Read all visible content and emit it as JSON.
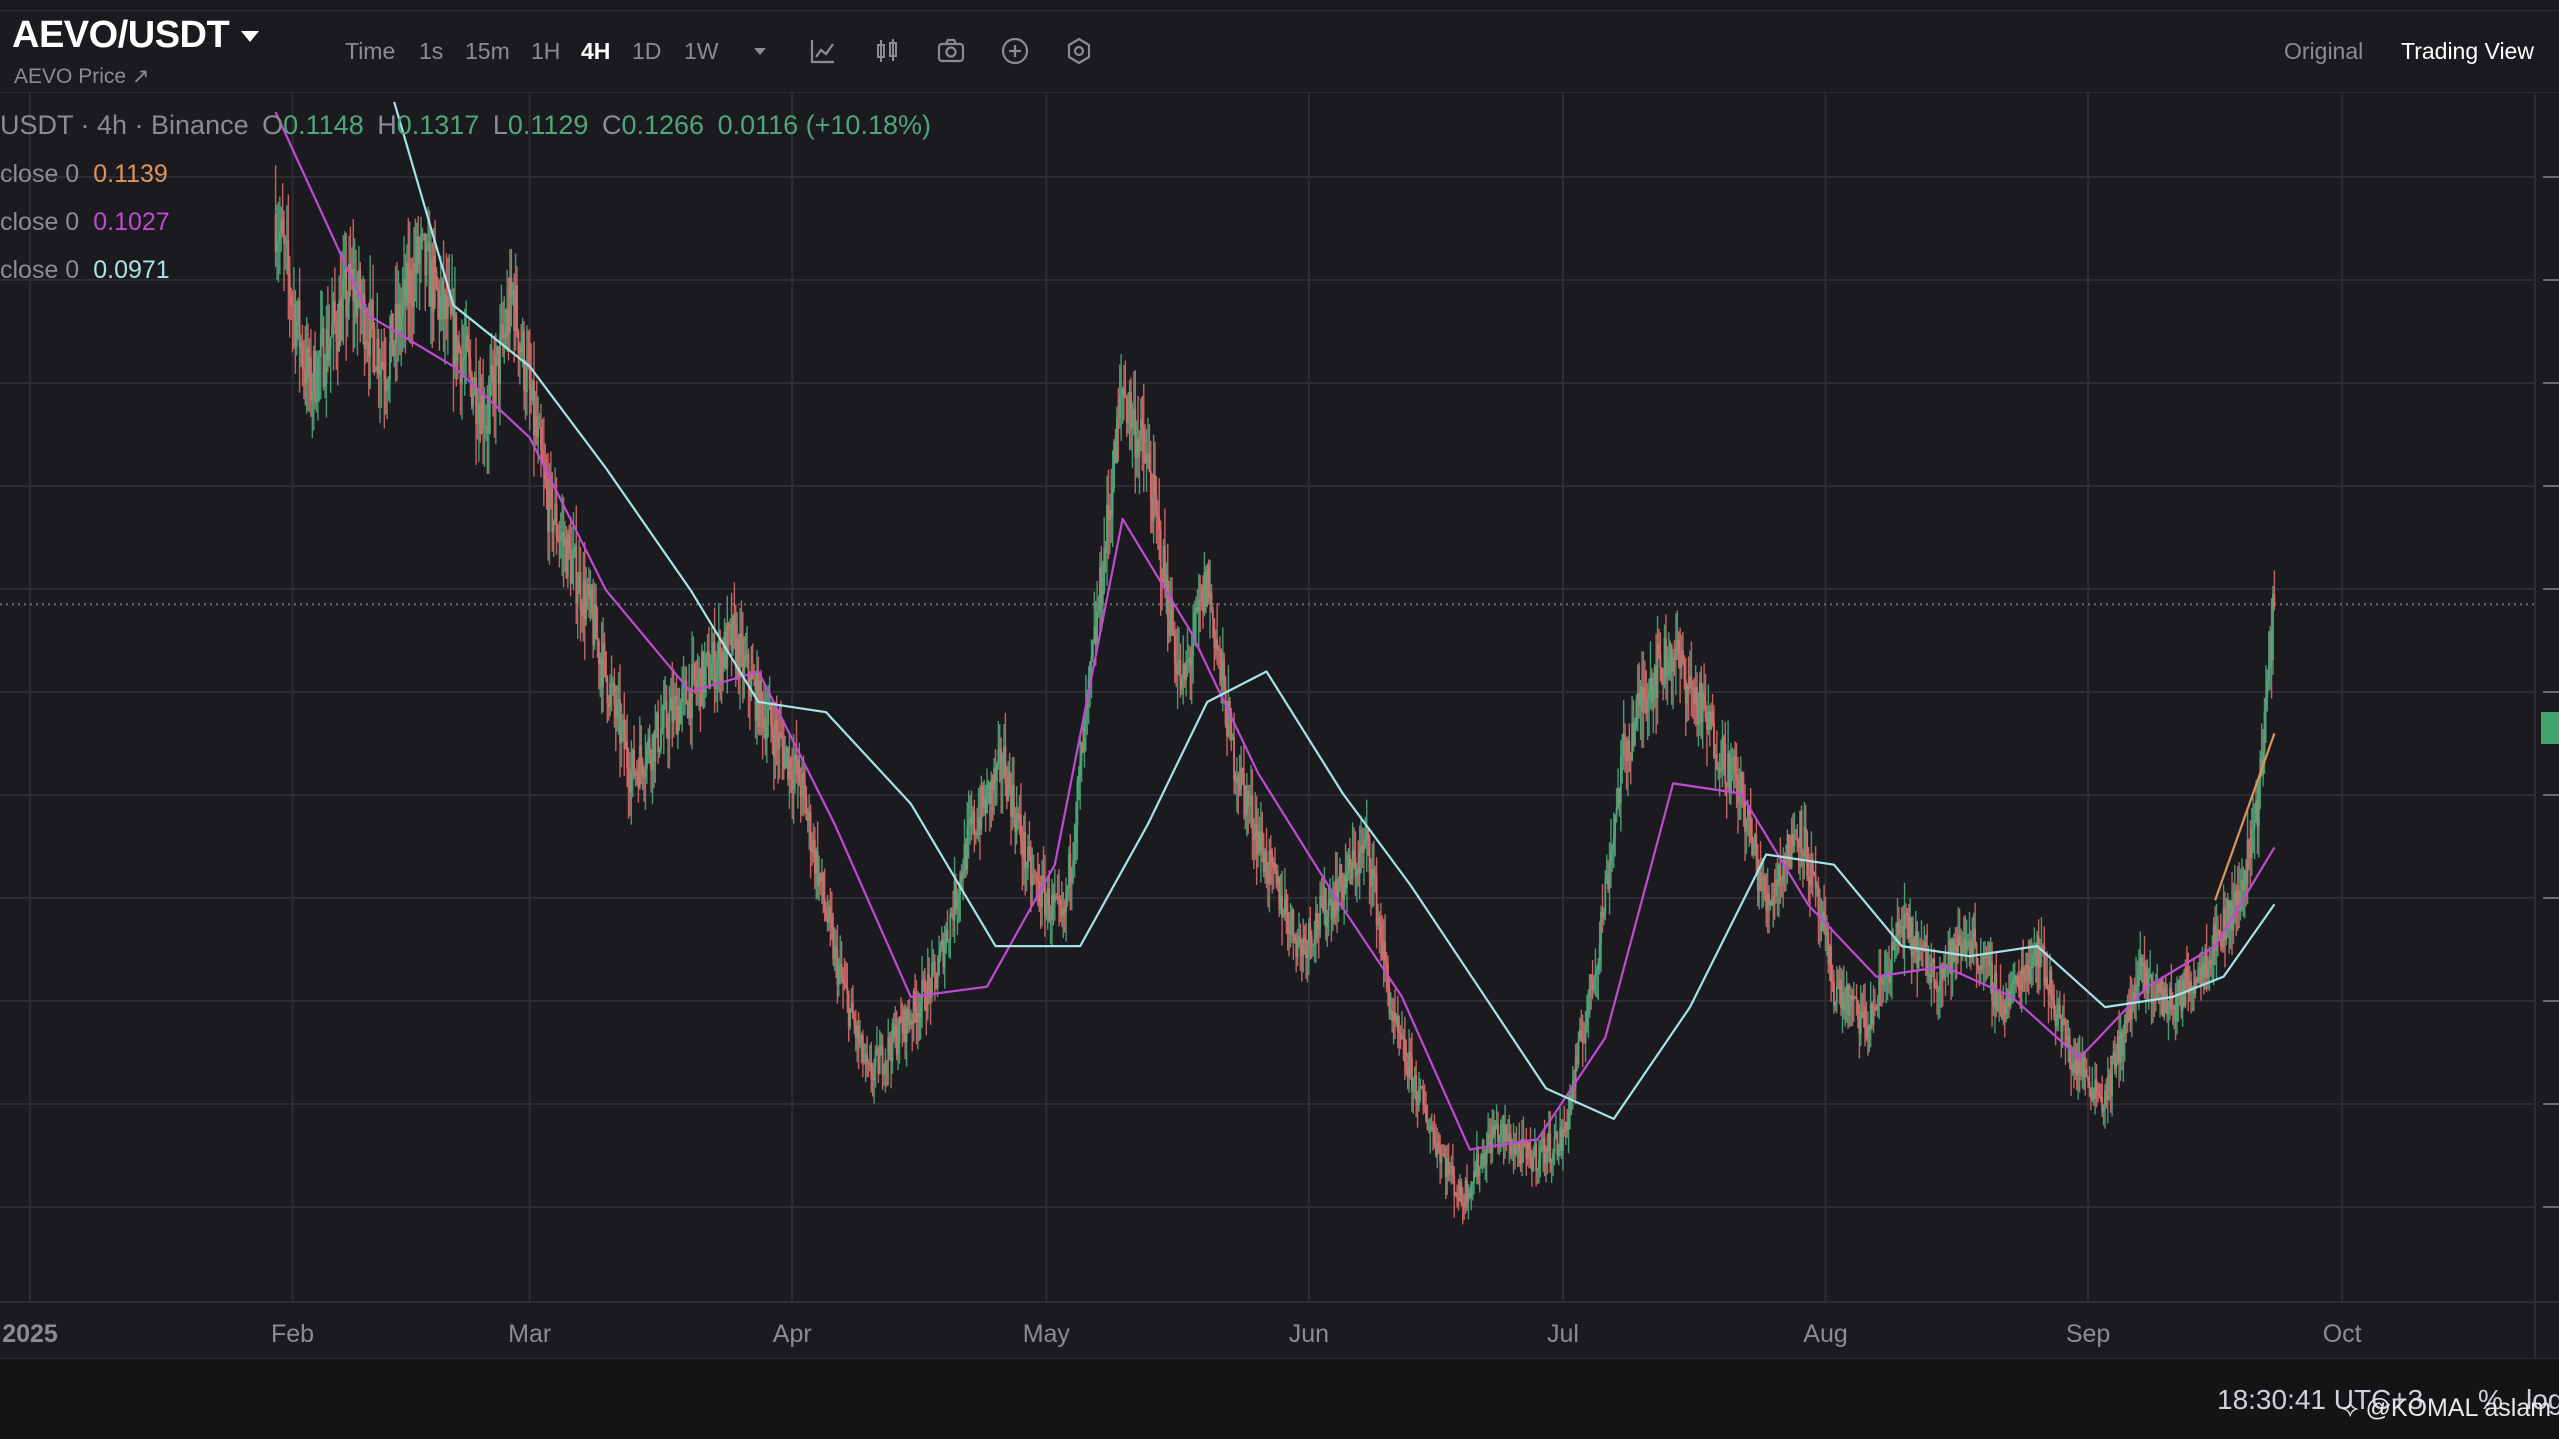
{
  "header": {
    "symbol": "AEVO/USDT",
    "subtitle": "AEVO Price ↗",
    "timeframes": [
      "Time",
      "1s",
      "15m",
      "1H",
      "4H",
      "1D",
      "1W"
    ],
    "active_timeframe": "4H",
    "views": [
      "Original",
      "Trading View"
    ],
    "active_view": "Trading View"
  },
  "legend": {
    "title": "USDT · 4h · Binance",
    "o_label": "O",
    "o": "0.1148",
    "h_label": "H",
    "h": "0.1317",
    "l_label": "L",
    "l": "0.1129",
    "c_label": "C",
    "c": "0.1266",
    "change": "0.0116 (+10.18%)"
  },
  "ma": [
    {
      "label": "close 0",
      "value": "0.1139",
      "color": "#e0955a"
    },
    {
      "label": "close 0",
      "value": "0.1027",
      "color": "#c14ad3"
    },
    {
      "label": "close 0",
      "value": "0.0971",
      "color": "#a6e3e6"
    }
  ],
  "footer": {
    "clock": "18:30:41 UTC+3",
    "percent": "%",
    "log": "log",
    "watermark": "@KOMAL aslam"
  },
  "colors": {
    "up": "#4fa67a",
    "down": "#d76b6b",
    "grid": "#2c2d33",
    "background": "#1b1b1f"
  },
  "chart_data": {
    "type": "line",
    "subtype": "candlestick",
    "x_tick_labels": [
      "2025",
      "Feb",
      "Mar",
      "Apr",
      "May",
      "Jun",
      "Jul",
      "Aug",
      "Sep",
      "Oct"
    ],
    "x_ticks": [
      "2025-01-01",
      "2025-02-01",
      "2025-03-01",
      "2025-04-01",
      "2025-05-01",
      "2025-06-01",
      "2025-07-01",
      "2025-08-01",
      "2025-09-01",
      "2025-10-01"
    ],
    "xlim": [
      "2025-01-01",
      "2025-10-22"
    ],
    "ylim": [
      0.058,
      0.176
    ],
    "current_price": 0.1266,
    "series": [
      {
        "name": "price",
        "color": "#4fa67a",
        "x": [
          "2025-01-30",
          "2025-02-03",
          "2025-02-08",
          "2025-02-12",
          "2025-02-16",
          "2025-02-20",
          "2025-02-24",
          "2025-02-27",
          "2025-03-03",
          "2025-03-08",
          "2025-03-13",
          "2025-03-18",
          "2025-03-22",
          "2025-03-25",
          "2025-03-28",
          "2025-04-02",
          "2025-04-06",
          "2025-04-10",
          "2025-04-14",
          "2025-04-18",
          "2025-04-22",
          "2025-04-26",
          "2025-04-29",
          "2025-05-03",
          "2025-05-07",
          "2025-05-10",
          "2025-05-13",
          "2025-05-17",
          "2025-05-20",
          "2025-05-23",
          "2025-05-27",
          "2025-05-31",
          "2025-06-04",
          "2025-06-08",
          "2025-06-11",
          "2025-06-15",
          "2025-06-19",
          "2025-06-23",
          "2025-06-27",
          "2025-07-01",
          "2025-07-05",
          "2025-07-08",
          "2025-07-11",
          "2025-07-14",
          "2025-07-18",
          "2025-07-22",
          "2025-07-25",
          "2025-07-29",
          "2025-08-02",
          "2025-08-06",
          "2025-08-10",
          "2025-08-14",
          "2025-08-18",
          "2025-08-22",
          "2025-08-26",
          "2025-08-30",
          "2025-09-03",
          "2025-09-07",
          "2025-09-11",
          "2025-09-15",
          "2025-09-19",
          "2025-09-21",
          "2025-09-23"
        ],
        "y": [
          0.165,
          0.148,
          0.158,
          0.15,
          0.161,
          0.153,
          0.145,
          0.157,
          0.137,
          0.126,
          0.11,
          0.116,
          0.12,
          0.123,
          0.117,
          0.109,
          0.092,
          0.08,
          0.085,
          0.09,
          0.104,
          0.111,
          0.1,
          0.095,
          0.125,
          0.148,
          0.14,
          0.118,
          0.129,
          0.112,
          0.101,
          0.093,
          0.098,
          0.103,
          0.085,
          0.076,
          0.068,
          0.075,
          0.072,
          0.074,
          0.092,
          0.111,
          0.119,
          0.122,
          0.115,
          0.108,
          0.097,
          0.105,
          0.089,
          0.085,
          0.095,
          0.09,
          0.094,
          0.087,
          0.093,
          0.082,
          0.078,
          0.09,
          0.087,
          0.092,
          0.098,
          0.107,
          0.1266
        ]
      },
      {
        "name": "MA close 0 (0.1139)",
        "color": "#e0955a",
        "x": [
          "2025-09-16",
          "2025-09-23"
        ],
        "y": [
          0.0975,
          0.1139
        ]
      },
      {
        "name": "MA close 0 (0.1027)",
        "color": "#c14ad3",
        "x": [
          "2025-01-30",
          "2025-02-10",
          "2025-02-20",
          "2025-03-01",
          "2025-03-10",
          "2025-03-20",
          "2025-03-28",
          "2025-04-06",
          "2025-04-15",
          "2025-04-24",
          "2025-05-02",
          "2025-05-10",
          "2025-05-18",
          "2025-05-26",
          "2025-06-04",
          "2025-06-12",
          "2025-06-20",
          "2025-06-28",
          "2025-07-06",
          "2025-07-14",
          "2025-07-22",
          "2025-07-30",
          "2025-08-07",
          "2025-08-15",
          "2025-08-23",
          "2025-08-31",
          "2025-09-08",
          "2025-09-16",
          "2025-09-23"
        ],
        "y": [
          0.175,
          0.155,
          0.15,
          0.143,
          0.128,
          0.118,
          0.12,
          0.105,
          0.088,
          0.089,
          0.101,
          0.135,
          0.124,
          0.11,
          0.098,
          0.088,
          0.073,
          0.074,
          0.084,
          0.109,
          0.108,
          0.097,
          0.09,
          0.091,
          0.088,
          0.082,
          0.089,
          0.093,
          0.1027
        ]
      },
      {
        "name": "MA close 0 (0.0971)",
        "color": "#a6e3e6",
        "x": [
          "2025-02-13",
          "2025-02-20",
          "2025-03-01",
          "2025-03-10",
          "2025-03-20",
          "2025-03-28",
          "2025-04-05",
          "2025-04-15",
          "2025-04-25",
          "2025-05-05",
          "2025-05-13",
          "2025-05-20",
          "2025-05-27",
          "2025-06-05",
          "2025-06-13",
          "2025-06-21",
          "2025-06-29",
          "2025-07-07",
          "2025-07-16",
          "2025-07-25",
          "2025-08-02",
          "2025-08-10",
          "2025-08-18",
          "2025-08-26",
          "2025-09-03",
          "2025-09-11",
          "2025-09-17",
          "2025-09-23"
        ],
        "y": [
          0.176,
          0.156,
          0.15,
          0.14,
          0.128,
          0.117,
          0.116,
          0.107,
          0.093,
          0.093,
          0.105,
          0.117,
          0.12,
          0.108,
          0.099,
          0.089,
          0.079,
          0.076,
          0.087,
          0.102,
          0.101,
          0.093,
          0.092,
          0.093,
          0.087,
          0.088,
          0.09,
          0.0971
        ]
      }
    ]
  }
}
